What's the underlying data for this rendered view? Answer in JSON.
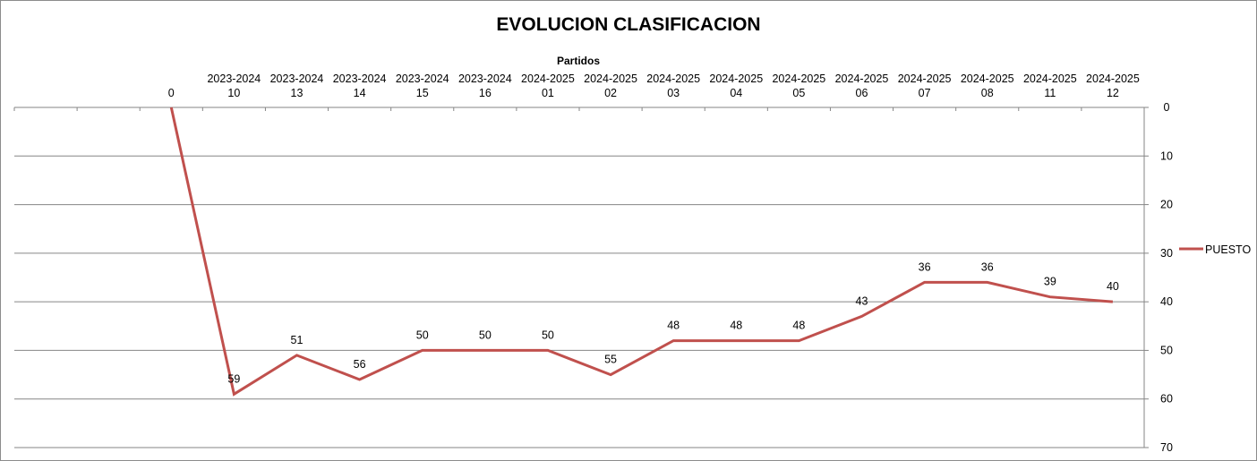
{
  "chart_data": {
    "type": "line",
    "title": "EVOLUCION CLASIFICACION",
    "xlabel": "Partidos",
    "ylabel": "",
    "categories": [
      [
        "",
        ""
      ],
      [
        "",
        ""
      ],
      [
        "",
        "0"
      ],
      [
        "2023-2024",
        "10"
      ],
      [
        "2023-2024",
        "13"
      ],
      [
        "2023-2024",
        "14"
      ],
      [
        "2023-2024",
        "15"
      ],
      [
        "2023-2024",
        "16"
      ],
      [
        "2024-2025",
        "01"
      ],
      [
        "2024-2025",
        "02"
      ],
      [
        "2024-2025",
        "03"
      ],
      [
        "2024-2025",
        "04"
      ],
      [
        "2024-2025",
        "05"
      ],
      [
        "2024-2025",
        "06"
      ],
      [
        "2024-2025",
        "07"
      ],
      [
        "2024-2025",
        "08"
      ],
      [
        "2024-2025",
        "11"
      ],
      [
        "2024-2025",
        "12"
      ]
    ],
    "series": [
      {
        "name": "PUESTO",
        "color": "#c0504d",
        "values": [
          null,
          null,
          0,
          59,
          51,
          56,
          50,
          50,
          50,
          55,
          48,
          48,
          48,
          43,
          36,
          36,
          39,
          40
        ],
        "data_labels": [
          null,
          null,
          null,
          "59",
          "51",
          "56",
          "50",
          "50",
          "50",
          "55",
          "48",
          "48",
          "48",
          "43",
          "36",
          "36",
          "39",
          "40"
        ]
      }
    ],
    "ylim": [
      0,
      70
    ],
    "y_reversed": true,
    "y_axis_side": "right",
    "x_axis_position": "top",
    "yticks": [
      0,
      10,
      20,
      30,
      40,
      50,
      60,
      70
    ],
    "grid": true,
    "legend": "right"
  }
}
